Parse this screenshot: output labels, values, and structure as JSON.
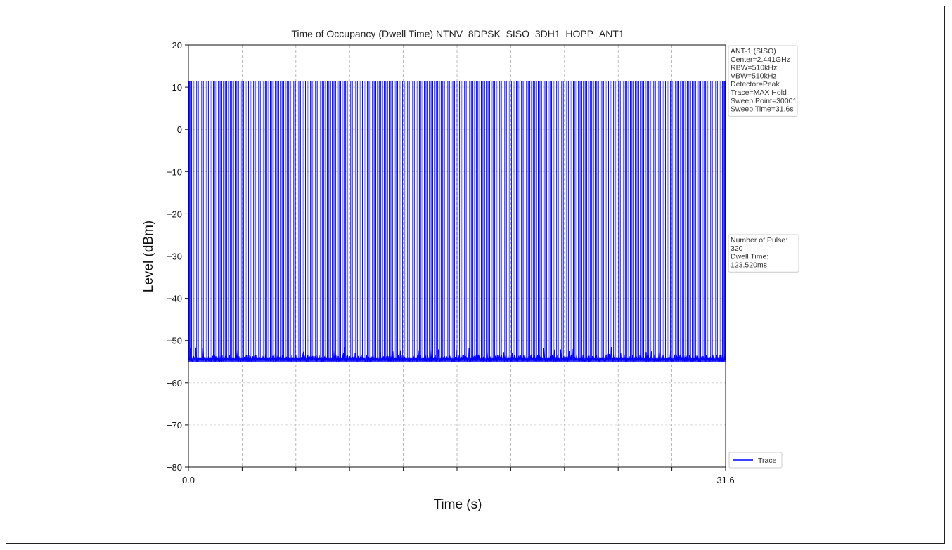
{
  "chart_data": {
    "type": "line",
    "title": "Time of Occupancy (Dwell Time) NTNV_8DPSK_SISO_3DH1_HOPP_ANT1",
    "xlabel": "Time (s)",
    "ylabel": "Level (dBm)",
    "xlim": [
      0.0,
      31.6
    ],
    "ylim": [
      -80,
      20
    ],
    "x_tick_labels": [
      "0.0",
      "31.6"
    ],
    "y_ticks": [
      20,
      10,
      0,
      -10,
      -20,
      -30,
      -40,
      -50,
      -60,
      -70,
      -80
    ],
    "grid": true,
    "pulse_count": 320,
    "pulse_peak_dbm": 11.5,
    "noise_floor_dbm": -54.5,
    "series": [
      {
        "name": "Trace",
        "color": "#0000ff"
      }
    ],
    "legend": {
      "position": "bottom-right",
      "entries": [
        "Trace"
      ]
    },
    "settings_box": [
      "ANT-1 (SISO)",
      "Center=2.441GHz",
      "RBW=510kHz",
      "VBW=510kHz",
      "Detector=Peak",
      "Trace=MAX Hold",
      "Sweep Point=30001",
      "Sweep Time=31.6s"
    ],
    "result_box": [
      "Number of Pulse:",
      "320",
      "Dwell Time:",
      "123.520ms"
    ]
  }
}
